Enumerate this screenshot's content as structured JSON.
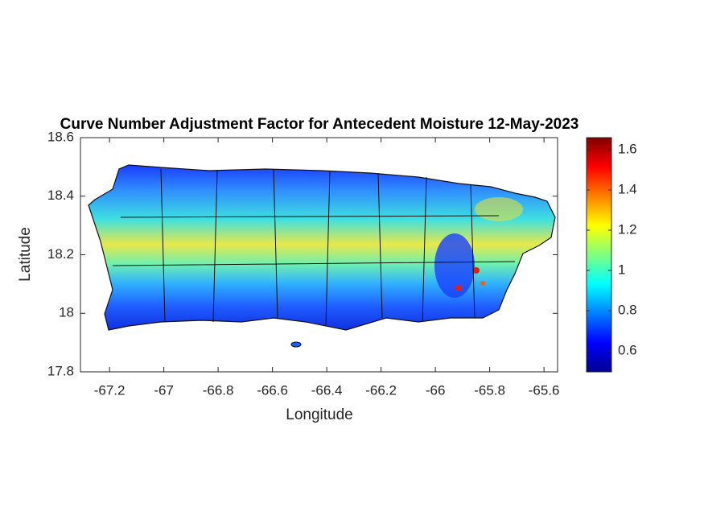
{
  "chart_data": {
    "type": "map",
    "title": "Curve Number Adjustment Factor for Antecedent Moisture 12-May-2023",
    "x_label": "Longitude",
    "y_label": "Latitude",
    "xlim": [
      -67.307,
      -65.55
    ],
    "xticks": [
      -67.2,
      -67,
      -66.8,
      -66.6,
      -66.4,
      -66.2,
      -66,
      -65.8,
      -65.6
    ],
    "ylim": [
      17.8,
      18.6
    ],
    "yticks": [
      18.6,
      18.4,
      18.2,
      18,
      17.8
    ],
    "colorbar": {
      "lim": [
        0.496,
        1.66
      ],
      "ticks": [
        0.6,
        0.8,
        1,
        1.2,
        1.4,
        1.6
      ],
      "colormap": "jet"
    }
  }
}
